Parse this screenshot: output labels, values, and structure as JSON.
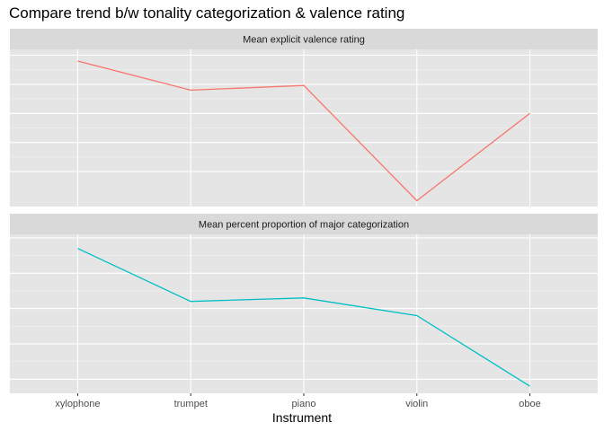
{
  "chart_data": {
    "type": "line",
    "title": "Compare trend b/w tonality categorization & valence rating",
    "xlabel": "Instrument",
    "ylabel": "",
    "categories": [
      "xylophone",
      "trumpet",
      "piano",
      "violin",
      "oboe"
    ],
    "facets": [
      {
        "strip_label": "Mean explicit valence rating",
        "color": "#F8766D",
        "values": [
          0.95,
          0.7,
          0.74,
          -0.25,
          0.5
        ],
        "ylim": [
          -0.3,
          1.05
        ],
        "y_gridlines": [
          0.0,
          0.25,
          0.5,
          0.75,
          1.0
        ]
      },
      {
        "strip_label": "Mean percent proportion of major categorization",
        "color": "#00BFC4",
        "values": [
          0.92,
          0.77,
          0.78,
          0.73,
          0.53
        ],
        "ylim": [
          0.51,
          0.96
        ],
        "y_gridlines": [
          0.55,
          0.65,
          0.75,
          0.85,
          0.95
        ]
      }
    ],
    "grid": true,
    "legend": "none",
    "panel_background": "#E5E5E5",
    "strip_background": "#D9D9D9"
  }
}
